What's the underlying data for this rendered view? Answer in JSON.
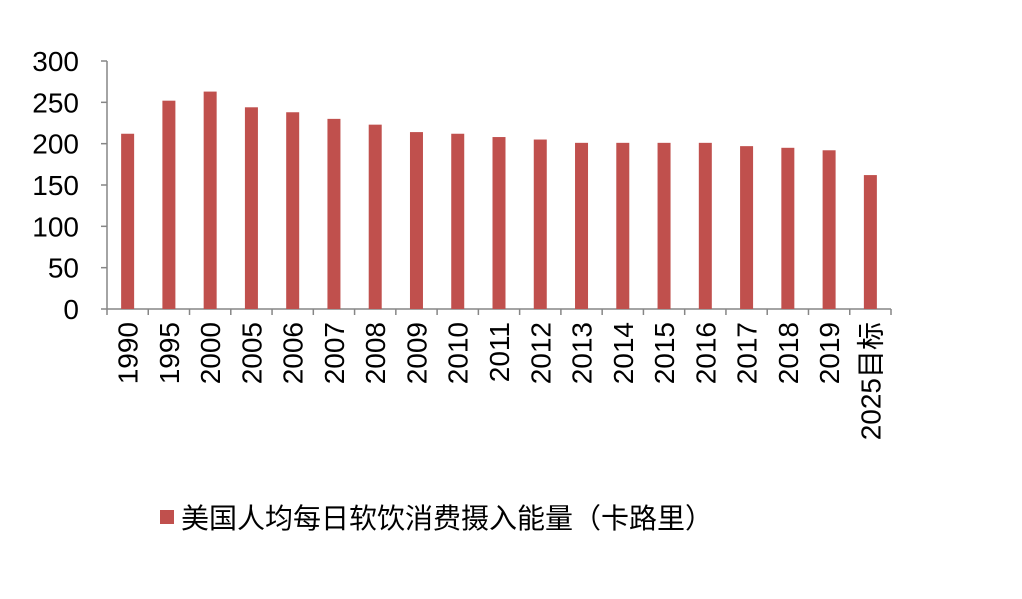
{
  "chart_data": {
    "type": "bar",
    "categories": [
      "1990",
      "1995",
      "2000",
      "2005",
      "2006",
      "2007",
      "2008",
      "2009",
      "2010",
      "2011",
      "2012",
      "2013",
      "2014",
      "2015",
      "2016",
      "2017",
      "2018",
      "2019",
      "2025目标"
    ],
    "series": [
      {
        "name": "美国人均每日软饮消费摄入能量（卡路里）",
        "color": "#C0504D",
        "values": [
          212,
          252,
          263,
          244,
          238,
          230,
          223,
          214,
          212,
          208,
          205,
          201,
          201,
          201,
          201,
          197,
          195,
          192,
          162
        ]
      }
    ],
    "title": "",
    "xlabel": "",
    "ylabel": "",
    "ylim": [
      0,
      300
    ],
    "yticks": [
      "0",
      "50",
      "100",
      "150",
      "200",
      "250",
      "300"
    ],
    "grid": false,
    "legend_position": "bottom"
  }
}
